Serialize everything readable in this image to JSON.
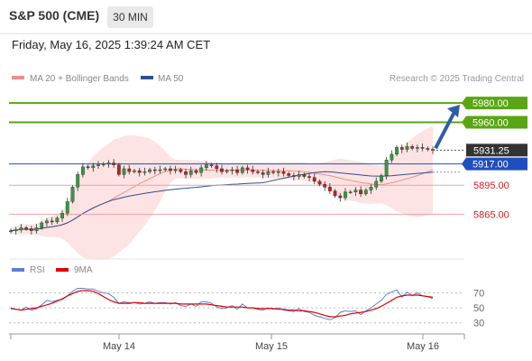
{
  "header": {
    "symbol": "S&P 500 (CME)",
    "timeframe": "30 MIN",
    "datetime": "Friday, May 16, 2025 1:39:24 AM CET"
  },
  "colors": {
    "bollinger": "#f28b8b",
    "ma50": "#2f4f8f",
    "resistance": "#5aa514",
    "support": "#f2a2a2",
    "pivot": "#1f4fbf",
    "price_tag": "#333333",
    "rsi": "#5b7fd6",
    "rsi_ma": "#e00000",
    "arrow": "#2d5fa6"
  },
  "chart_data": [
    {
      "type": "candlestick",
      "legend": [
        {
          "label": "MA 20 + Bollinger Bands",
          "color": "#f28b8b"
        },
        {
          "label": "MA 50",
          "color": "#2f4f8f"
        }
      ],
      "credit": "Research © 2025 Trading Central",
      "ylim": [
        5842,
        5995
      ],
      "x_labels": [
        "May 14",
        "May 15",
        "May 16"
      ],
      "levels": [
        {
          "value": 5980.0,
          "label": "5980.00",
          "kind": "resistance"
        },
        {
          "value": 5960.0,
          "label": "5960.00",
          "kind": "resistance"
        },
        {
          "value": 5931.25,
          "label": "5931.25",
          "kind": "last-price"
        },
        {
          "value": 5917.0,
          "label": "5917.00",
          "kind": "pivot"
        },
        {
          "value": 5895.0,
          "label": "5895.00",
          "kind": "support"
        },
        {
          "value": 5865.0,
          "label": "5865.00",
          "kind": "support"
        }
      ],
      "close": [
        5848,
        5849,
        5851,
        5850,
        5848,
        5851,
        5856,
        5858,
        5857,
        5861,
        5866,
        5878,
        5893,
        5906,
        5914,
        5913,
        5915,
        5916,
        5917,
        5918,
        5916,
        5906,
        5912,
        5909,
        5910,
        5908,
        5909,
        5911,
        5910,
        5911,
        5912,
        5910,
        5911,
        5909,
        5906,
        5910,
        5908,
        5913,
        5916,
        5915,
        5912,
        5909,
        5910,
        5911,
        5908,
        5913,
        5911,
        5909,
        5908,
        5906,
        5909,
        5908,
        5909,
        5907,
        5905,
        5904,
        5906,
        5904,
        5903,
        5899,
        5896,
        5893,
        5889,
        5884,
        5882,
        5888,
        5888,
        5890,
        5886,
        5890,
        5893,
        5899,
        5905,
        5921,
        5927,
        5934,
        5932,
        5935,
        5933,
        5934,
        5933,
        5932,
        5931.25
      ],
      "rsi": {
        "legend": [
          {
            "label": "RSI",
            "color": "#5b7fd6"
          },
          {
            "label": "9MA",
            "color": "#e00000"
          }
        ],
        "ticks": [
          70,
          50,
          30
        ],
        "ylim": [
          20,
          85
        ],
        "values": [
          50,
          48,
          47,
          51,
          47,
          49,
          54,
          60,
          58,
          60,
          61,
          66,
          72,
          76,
          76,
          75,
          75,
          72,
          70,
          69,
          64,
          56,
          58,
          57,
          57,
          55,
          56,
          58,
          56,
          57,
          57,
          55,
          57,
          53,
          52,
          55,
          52,
          58,
          58,
          56,
          51,
          49,
          50,
          53,
          48,
          55,
          50,
          50,
          48,
          47,
          50,
          48,
          50,
          47,
          46,
          45,
          49,
          45,
          44,
          40,
          38,
          36,
          34,
          37,
          44,
          46,
          45,
          46,
          41,
          46,
          50,
          55,
          60,
          68,
          71,
          74,
          64,
          71,
          66,
          70,
          66,
          65,
          62
        ],
        "ma": [
          49,
          48,
          47,
          48,
          49,
          50,
          52,
          54,
          56,
          59,
          62,
          66,
          69,
          72,
          73,
          73,
          72,
          69,
          65,
          61,
          58,
          56,
          56,
          56,
          57,
          57,
          56,
          56,
          56,
          56,
          56,
          56,
          56,
          55,
          55,
          55,
          55,
          55,
          55,
          54,
          53,
          52,
          51,
          51,
          51,
          51,
          50,
          50,
          49,
          49,
          49,
          49,
          48,
          48,
          47,
          47,
          46,
          46,
          45,
          44,
          42,
          40,
          38,
          38,
          39,
          40,
          42,
          43,
          44,
          45,
          47,
          49,
          52,
          56,
          60,
          64,
          66,
          67,
          67,
          67,
          66,
          65,
          64
        ]
      }
    }
  ]
}
